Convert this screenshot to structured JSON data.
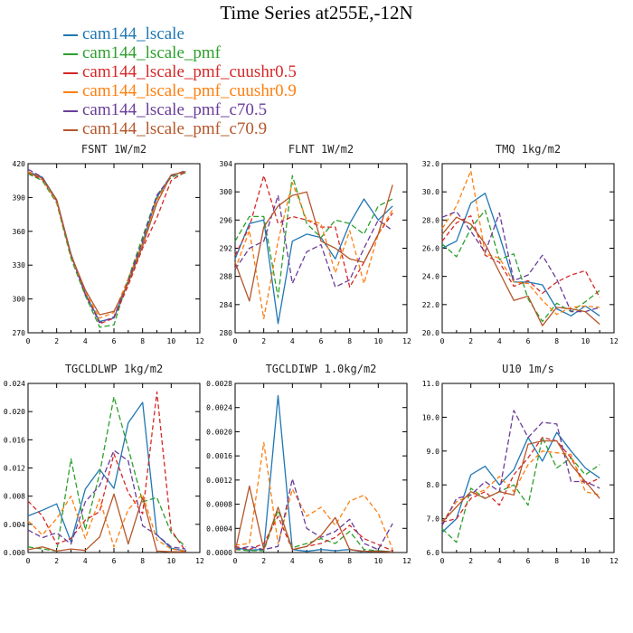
{
  "title": "Time Series at255E,-12N",
  "legend": [
    {
      "label": "cam144_lscale",
      "color": "#1f77b4"
    },
    {
      "label": "cam144_lscale_pmf",
      "color": "#2ca02c"
    },
    {
      "label": "cam144_lscale_pmf_cuushr0.5",
      "color": "#d62728"
    },
    {
      "label": "cam144_lscale_pmf_cuushr0.9",
      "color": "#ff7f0e"
    },
    {
      "label": "cam144_lscale_pmf_c70.5",
      "color": "#6a3d9a"
    },
    {
      "label": "cam144_lscale_pmf_c70.9",
      "color": "#b5562a"
    }
  ],
  "chart_data": [
    {
      "type": "line",
      "title": "FSNT  1W/m2",
      "x": [
        0,
        1,
        2,
        3,
        4,
        5,
        6,
        7,
        8,
        9,
        10,
        11
      ],
      "xlim": [
        0,
        12
      ],
      "xticks": [
        "0",
        "2",
        "4",
        "6",
        "8",
        "10",
        "12"
      ],
      "ylim": [
        270,
        420
      ],
      "yticks": [
        "270",
        "300",
        "330",
        "360",
        "390",
        "420"
      ],
      "series": [
        {
          "name": "cam144_lscale",
          "values": [
            413,
            408,
            388,
            340,
            305,
            280,
            283,
            315,
            350,
            390,
            410,
            413
          ]
        },
        {
          "name": "cam144_lscale_pmf",
          "values": [
            411,
            405,
            385,
            336,
            303,
            275,
            277,
            318,
            355,
            392,
            408,
            412
          ]
        },
        {
          "name": "cam144_lscale_pmf_cuushr0.5",
          "values": [
            412,
            406,
            387,
            339,
            306,
            278,
            283,
            312,
            345,
            372,
            405,
            413
          ]
        },
        {
          "name": "cam144_lscale_pmf_cuushr0.9",
          "values": [
            413,
            407,
            386,
            338,
            306,
            283,
            288,
            318,
            350,
            388,
            410,
            413
          ]
        },
        {
          "name": "cam144_lscale_pmf_c70.5",
          "values": [
            415,
            408,
            387,
            339,
            304,
            279,
            284,
            316,
            352,
            392,
            409,
            414
          ]
        },
        {
          "name": "cam144_lscale_pmf_c70.9",
          "values": [
            412,
            407,
            388,
            339,
            308,
            286,
            289,
            314,
            347,
            385,
            410,
            413
          ]
        }
      ]
    },
    {
      "type": "line",
      "title": "FLNT  1W/m2",
      "x": [
        0,
        1,
        2,
        3,
        4,
        5,
        6,
        7,
        8,
        9,
        10,
        11
      ],
      "xlim": [
        0,
        12
      ],
      "xticks": [
        "0",
        "2",
        "4",
        "6",
        "8",
        "10",
        "12"
      ],
      "ylim": [
        280,
        304
      ],
      "yticks": [
        "280",
        "284",
        "288",
        "292",
        "296",
        "300",
        "304"
      ],
      "series": [
        {
          "name": "cam144_lscale",
          "values": [
            290.5,
            295.5,
            296,
            281.3,
            293,
            294,
            293.5,
            290.5,
            295.5,
            299,
            296,
            298
          ]
        },
        {
          "name": "cam144_lscale_pmf",
          "values": [
            293,
            296.5,
            296.5,
            285,
            302.3,
            295.5,
            293.5,
            296,
            295.5,
            294,
            298,
            299
          ]
        },
        {
          "name": "cam144_lscale_pmf_cuushr0.5",
          "values": [
            291,
            295,
            302.3,
            295.5,
            296.5,
            296,
            295,
            295,
            286.5,
            290,
            294,
            297
          ]
        },
        {
          "name": "cam144_lscale_pmf_cuushr0.9",
          "values": [
            289,
            294.5,
            282,
            293,
            301.3,
            296,
            295.5,
            288.5,
            294.5,
            287,
            294,
            297.5
          ]
        },
        {
          "name": "cam144_lscale_pmf_c70.5",
          "values": [
            289,
            292,
            293,
            299.5,
            287,
            291.5,
            292.5,
            286.5,
            287.5,
            292,
            296,
            294.5
          ]
        },
        {
          "name": "cam144_lscale_pmf_c70.9",
          "values": [
            290,
            284.5,
            295,
            298,
            299.5,
            300,
            293,
            292,
            290.5,
            290,
            294,
            301
          ]
        }
      ]
    },
    {
      "type": "line",
      "title": "TMQ  1kg/m2",
      "x": [
        0,
        1,
        2,
        3,
        4,
        5,
        6,
        7,
        8,
        9,
        10,
        11
      ],
      "xlim": [
        0,
        12
      ],
      "xticks": [
        "0",
        "2",
        "4",
        "6",
        "8",
        "10",
        "12"
      ],
      "ylim": [
        20,
        32
      ],
      "yticks": [
        "20.0",
        "22.0",
        "24.0",
        "26.0",
        "28.0",
        "30.0",
        "32.0"
      ],
      "series": [
        {
          "name": "cam144_lscale",
          "values": [
            26,
            26.5,
            29.2,
            29.9,
            26.9,
            23.6,
            23.6,
            23.4,
            21.7,
            21.2,
            21.9,
            21.2
          ]
        },
        {
          "name": "cam144_lscale_pmf",
          "values": [
            26.3,
            25.4,
            27.4,
            28.7,
            25.2,
            25.6,
            22.4,
            20.8,
            22.1,
            21.5,
            22.2,
            23.0
          ]
        },
        {
          "name": "cam144_lscale_pmf_cuushr0.5",
          "values": [
            26.5,
            27.8,
            28.3,
            25.5,
            25.0,
            23.3,
            23.7,
            22.8,
            23.6,
            24.1,
            24.4,
            22.5
          ]
        },
        {
          "name": "cam144_lscale_pmf_cuushr0.9",
          "values": [
            27.4,
            29.0,
            31.5,
            25.6,
            25.3,
            23.6,
            23.5,
            22.3,
            21.3,
            21.8,
            21.9,
            21.8
          ]
        },
        {
          "name": "cam144_lscale_pmf_c70.5",
          "values": [
            28.2,
            28.6,
            27.2,
            25.7,
            28.5,
            23.7,
            24.1,
            25.5,
            23.8,
            21.5,
            21.5,
            21.8
          ]
        },
        {
          "name": "cam144_lscale_pmf_c70.9",
          "values": [
            27.0,
            28.2,
            27.7,
            26.3,
            24.3,
            22.3,
            22.6,
            20.5,
            21.8,
            21.7,
            21.5,
            20.6
          ]
        }
      ]
    },
    {
      "type": "line",
      "title": "TGCLDLWP  1kg/m2",
      "x": [
        0,
        1,
        2,
        3,
        4,
        5,
        6,
        7,
        8,
        9,
        10,
        11
      ],
      "xlim": [
        0,
        12
      ],
      "xticks": [
        "0",
        "2",
        "4",
        "6",
        "8",
        "10",
        "12"
      ],
      "ylim": [
        0,
        0.024
      ],
      "yticks": [
        "0.000",
        "0.004",
        "0.008",
        "0.012",
        "0.016",
        "0.020",
        "0.024"
      ],
      "series": [
        {
          "name": "cam144_lscale",
          "values": [
            0.0052,
            0.006,
            0.0069,
            0.0015,
            0.009,
            0.0118,
            0.0091,
            0.0184,
            0.0213,
            0.0025,
            0.0006,
            0.0002
          ]
        },
        {
          "name": "cam144_lscale_pmf",
          "values": [
            0.0008,
            0.0005,
            0.0002,
            0.0133,
            0.0032,
            0.0112,
            0.0221,
            0.0148,
            0.0072,
            0.0078,
            0.0028,
            0.0008
          ]
        },
        {
          "name": "cam144_lscale_pmf_cuushr0.5",
          "values": [
            0.0073,
            0.0052,
            0.0012,
            0.002,
            0.0046,
            0.0058,
            0.014,
            0.0085,
            0.0055,
            0.0228,
            0.0032,
            0.0002
          ]
        },
        {
          "name": "cam144_lscale_pmf_cuushr0.9",
          "values": [
            0.0045,
            0.0025,
            0.0048,
            0.008,
            0.002,
            0.0076,
            0.0008,
            0.0061,
            0.0083,
            0.0018,
            0.0005,
            0.0002
          ]
        },
        {
          "name": "cam144_lscale_pmf_c70.5",
          "values": [
            0.0032,
            0.0021,
            0.0028,
            0.0012,
            0.0072,
            0.0095,
            0.0145,
            0.013,
            0.0038,
            0.0025,
            0.0008,
            0.0005
          ]
        },
        {
          "name": "cam144_lscale_pmf_c70.9",
          "values": [
            0.0004,
            0.0008,
            0.0002,
            0.0005,
            0.0003,
            0.0022,
            0.0083,
            0.0012,
            0.0078,
            0.0002,
            0.0001,
            0.0001
          ]
        }
      ]
    },
    {
      "type": "line",
      "title": "TGCLDIWP  1.0kg/m2",
      "x": [
        0,
        1,
        2,
        3,
        4,
        5,
        6,
        7,
        8,
        9,
        10,
        11
      ],
      "xlim": [
        0,
        12
      ],
      "xticks": [
        "0",
        "2",
        "4",
        "6",
        "8",
        "10",
        "12"
      ],
      "ylim": [
        0,
        0.0028
      ],
      "yticks": [
        "0.0000",
        "0.0004",
        "0.0008",
        "0.0012",
        "0.0016",
        "0.0020",
        "0.0024",
        "0.0028"
      ],
      "series": [
        {
          "name": "cam144_lscale",
          "values": [
            8e-05,
            4e-05,
            5e-05,
            0.0026,
            5e-05,
            2e-05,
            5e-05,
            3e-05,
            5e-05,
            1e-05,
            3e-05,
            1e-05
          ]
        },
        {
          "name": "cam144_lscale_pmf",
          "values": [
            5e-05,
            3e-05,
            3e-05,
            0.0007,
            8e-05,
            0.00015,
            0.00023,
            0.00015,
            0.00035,
            5e-05,
            3e-05,
            1e-05
          ]
        },
        {
          "name": "cam144_lscale_pmf_cuushr0.5",
          "values": [
            0.0001,
            5e-05,
            0.00015,
            0.0006,
            5e-05,
            0.0001,
            0.00015,
            0.00025,
            0.00045,
            0.00023,
            0.00013,
            3e-05
          ]
        },
        {
          "name": "cam144_lscale_pmf_cuushr0.9",
          "values": [
            0.00012,
            0.00015,
            0.00182,
            0.00015,
            0.00105,
            0.0006,
            0.00075,
            0.00045,
            0.00085,
            0.00095,
            0.00065,
            5e-05
          ]
        },
        {
          "name": "cam144_lscale_pmf_c70.5",
          "values": [
            5e-05,
            0.0001,
            5e-05,
            0.0001,
            0.00122,
            0.0004,
            0.00025,
            0.00035,
            0.00055,
            0.00015,
            5e-05,
            0.00048
          ]
        },
        {
          "name": "cam144_lscale_pmf_c70.9",
          "values": [
            2e-05,
            0.0011,
            5e-05,
            0.00075,
            5e-05,
            0.0001,
            0.00028,
            0.00058,
            5e-05,
            2e-05,
            2e-05,
            1e-05
          ]
        }
      ]
    },
    {
      "type": "line",
      "title": "U10  1m/s",
      "x": [
        0,
        1,
        2,
        3,
        4,
        5,
        6,
        7,
        8,
        9,
        10,
        11
      ],
      "xlim": [
        0,
        12
      ],
      "xticks": [
        "0",
        "2",
        "4",
        "6",
        "8",
        "10",
        "12"
      ],
      "ylim": [
        6,
        11
      ],
      "yticks": [
        "6.0",
        "7.0",
        "8.0",
        "9.0",
        "10.0",
        "11.0"
      ],
      "series": [
        {
          "name": "cam144_lscale",
          "values": [
            6.6,
            7.0,
            8.3,
            8.55,
            8.0,
            8.45,
            9.4,
            8.7,
            9.55,
            9.0,
            8.5,
            8.2
          ]
        },
        {
          "name": "cam144_lscale_pmf",
          "values": [
            6.7,
            6.3,
            7.9,
            7.6,
            7.8,
            8.0,
            7.4,
            9.4,
            8.5,
            8.8,
            8.3,
            8.6
          ]
        },
        {
          "name": "cam144_lscale_pmf_cuushr0.5",
          "values": [
            6.9,
            7.0,
            7.6,
            7.8,
            7.4,
            8.3,
            8.8,
            9.4,
            9.3,
            8.8,
            8.0,
            8.2
          ]
        },
        {
          "name": "cam144_lscale_pmf_cuushr0.9",
          "values": [
            6.9,
            7.5,
            7.7,
            7.85,
            8.25,
            7.8,
            8.6,
            9.0,
            8.95,
            8.9,
            7.8,
            7.7
          ]
        },
        {
          "name": "cam144_lscale_pmf_c70.5",
          "values": [
            6.8,
            7.6,
            7.7,
            8.1,
            7.8,
            10.2,
            9.4,
            9.85,
            9.8,
            8.1,
            8.1,
            7.9
          ]
        },
        {
          "name": "cam144_lscale_pmf_c70.9",
          "values": [
            6.9,
            7.35,
            7.8,
            7.6,
            7.8,
            7.7,
            9.2,
            9.3,
            9.3,
            8.6,
            8.1,
            7.6
          ]
        }
      ]
    }
  ]
}
